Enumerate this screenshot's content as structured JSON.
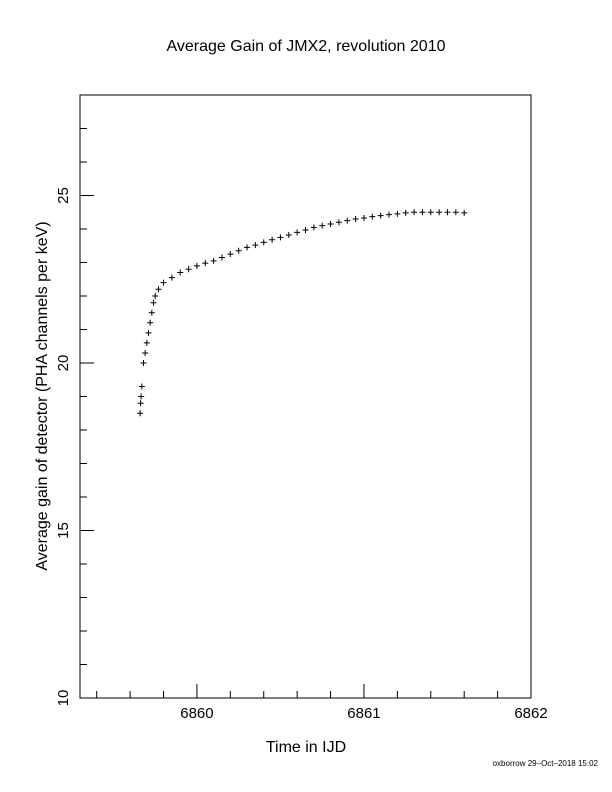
{
  "chart_data": {
    "type": "scatter",
    "title": "Average Gain of JMX2, revolution 2010",
    "xlabel": "Time in IJD",
    "ylabel": "Average gain of detector (PHA channels per keV)",
    "footer": "oxborrow 29–Oct–2018 15:02",
    "marker": "+",
    "color": "#000000",
    "xlim": [
      6859.3,
      6862
    ],
    "ylim": [
      10,
      28
    ],
    "xticks": [
      6860,
      6861,
      6862
    ],
    "yticks": [
      10,
      15,
      20,
      25
    ],
    "xminorticks": [
      6859.4,
      6859.6,
      6859.8,
      6860.2,
      6860.4,
      6860.6,
      6860.8,
      6861.2,
      6861.4,
      6861.6,
      6861.8
    ],
    "yminorticks": [
      11,
      12,
      13,
      14,
      16,
      17,
      18,
      19,
      21,
      22,
      23,
      24,
      26,
      27
    ],
    "x": [
      6859.66,
      6859.663,
      6859.666,
      6859.67,
      6859.68,
      6859.69,
      6859.7,
      6859.71,
      6859.72,
      6859.73,
      6859.74,
      6859.75,
      6859.77,
      6859.8,
      6859.85,
      6859.9,
      6859.95,
      6860.0,
      6860.05,
      6860.1,
      6860.15,
      6860.2,
      6860.25,
      6860.3,
      6860.35,
      6860.4,
      6860.45,
      6860.5,
      6860.55,
      6860.6,
      6860.65,
      6860.7,
      6860.75,
      6860.8,
      6860.85,
      6860.9,
      6860.95,
      6861.0,
      6861.05,
      6861.1,
      6861.15,
      6861.2,
      6861.25,
      6861.3,
      6861.35,
      6861.4,
      6861.45,
      6861.5,
      6861.55,
      6861.6
    ],
    "y": [
      18.5,
      18.8,
      19.0,
      19.3,
      20.0,
      20.3,
      20.6,
      20.9,
      21.2,
      21.5,
      21.8,
      22.0,
      22.2,
      22.4,
      22.55,
      22.7,
      22.8,
      22.9,
      22.98,
      23.05,
      23.15,
      23.25,
      23.35,
      23.45,
      23.52,
      23.6,
      23.68,
      23.75,
      23.82,
      23.9,
      23.97,
      24.05,
      24.1,
      24.15,
      24.2,
      24.25,
      24.3,
      24.33,
      24.37,
      24.4,
      24.43,
      24.45,
      24.48,
      24.5,
      24.5,
      24.5,
      24.5,
      24.5,
      24.5,
      24.48
    ]
  }
}
